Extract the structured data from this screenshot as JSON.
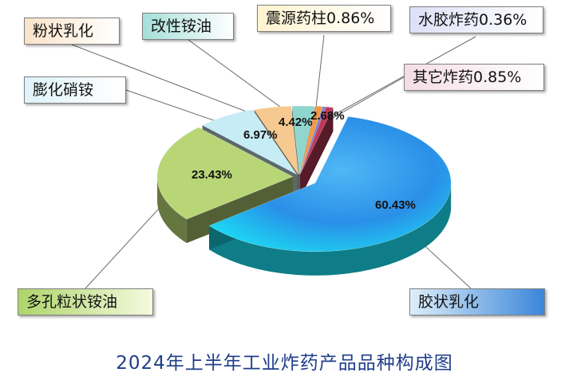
{
  "chart_data": {
    "type": "pie",
    "title": "2024年上半年工业炸药产品品种构成图",
    "slices": [
      {
        "label": "胶状乳化",
        "value": 60.43,
        "value_label": "60.43%",
        "color": "#19e3f5"
      },
      {
        "label": "多孔粒状铵油",
        "value": 23.43,
        "value_label": "23.43%",
        "color": "#b8d676"
      },
      {
        "label": "膨化硝铵",
        "value": 6.97,
        "value_label": "6.97%",
        "color": "#c6ecf5"
      },
      {
        "label": "粉状乳化",
        "value": 4.42,
        "value_label": "4.42%",
        "color": "#f5c98f"
      },
      {
        "label": "改性铵油",
        "value": 2.68,
        "value_label": "2.68%",
        "color": "#8fd6cf"
      },
      {
        "label": "震源药柱0.86%",
        "value": 0.86,
        "value_label": "",
        "color": "#f29a4a"
      },
      {
        "label": "水胶炸药0.36%",
        "value": 0.36,
        "value_label": "",
        "color": "#7a7fd0"
      },
      {
        "label": "其它炸药0.85%",
        "value": 0.85,
        "value_label": "",
        "color": "#c0395a"
      }
    ]
  }
}
